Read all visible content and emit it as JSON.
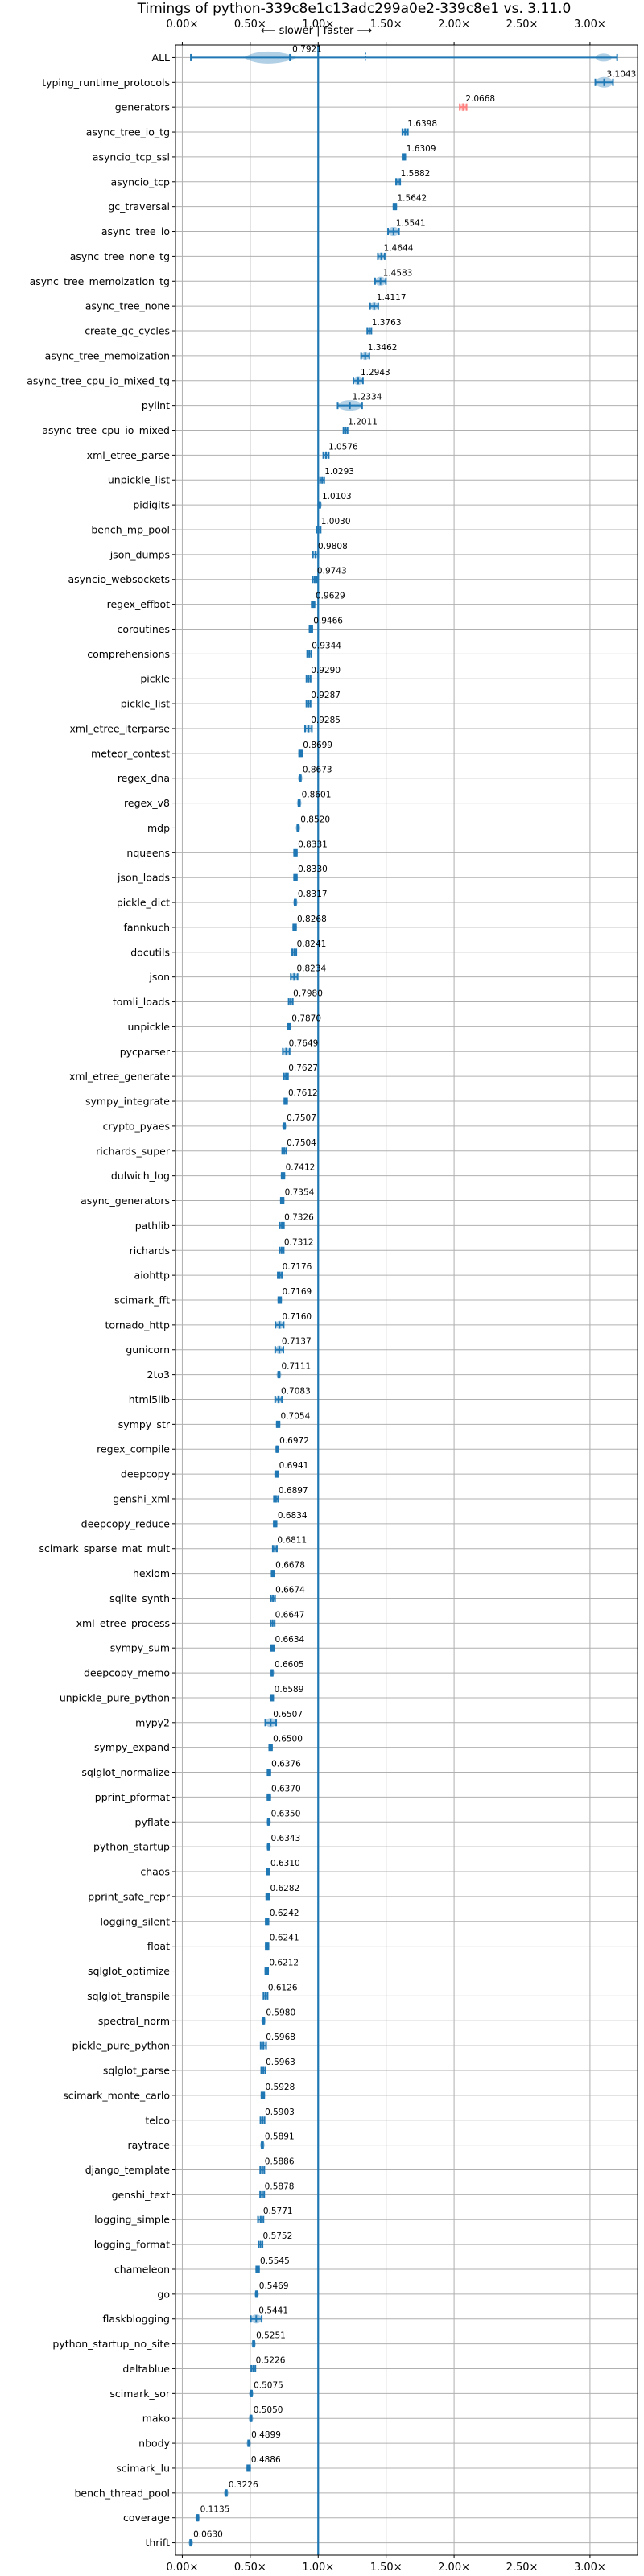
{
  "chart_data": {
    "type": "violin",
    "title": "Timings of python-339c8e1c13adc299a0e2-339c8e1 vs. 3.11.0",
    "subtitle": "⟵ slower | faster ⟶",
    "xlabel": "",
    "ylabel": "",
    "xlim": [
      -0.05,
      3.35
    ],
    "x_ticks": [
      "0.00×",
      "0.50×",
      "1.00×",
      "1.50×",
      "2.00×",
      "2.50×",
      "3.00×"
    ],
    "x_tick_values": [
      0,
      0.5,
      1,
      1.5,
      2,
      2.5,
      3
    ],
    "reference_line": 1.0,
    "grid": true,
    "colors": {
      "violin": "#1f77b4",
      "highlight": "#ff7f7f",
      "grid": "#b0b0b0"
    },
    "benchmarks": [
      {
        "name": "ALL",
        "value": 0.7921,
        "spread": 0.55
      },
      {
        "name": "typing_runtime_protocols",
        "value": 3.1043,
        "spread": 0.13
      },
      {
        "name": "generators",
        "value": 2.0668,
        "spread": 0.05,
        "highlight": true
      },
      {
        "name": "async_tree_io_tg",
        "value": 1.6398,
        "spread": 0.04
      },
      {
        "name": "asyncio_tcp_ssl",
        "value": 1.6309,
        "spread": 0.02
      },
      {
        "name": "asyncio_tcp",
        "value": 1.5882,
        "spread": 0.03
      },
      {
        "name": "gc_traversal",
        "value": 1.5642,
        "spread": 0.02
      },
      {
        "name": "async_tree_io",
        "value": 1.5541,
        "spread": 0.08
      },
      {
        "name": "async_tree_none_tg",
        "value": 1.4644,
        "spread": 0.05
      },
      {
        "name": "async_tree_memoization_tg",
        "value": 1.4583,
        "spread": 0.08
      },
      {
        "name": "async_tree_none",
        "value": 1.4117,
        "spread": 0.06
      },
      {
        "name": "create_gc_cycles",
        "value": 1.3763,
        "spread": 0.03
      },
      {
        "name": "async_tree_memoization",
        "value": 1.3462,
        "spread": 0.06
      },
      {
        "name": "async_tree_cpu_io_mixed_tg",
        "value": 1.2943,
        "spread": 0.07
      },
      {
        "name": "pylint",
        "value": 1.2334,
        "spread": 0.18
      },
      {
        "name": "async_tree_cpu_io_mixed",
        "value": 1.2011,
        "spread": 0.03
      },
      {
        "name": "xml_etree_parse",
        "value": 1.0576,
        "spread": 0.04
      },
      {
        "name": "unpickle_list",
        "value": 1.0293,
        "spread": 0.03
      },
      {
        "name": "pidigits",
        "value": 1.0103,
        "spread": 0.01
      },
      {
        "name": "bench_mp_pool",
        "value": 1.003,
        "spread": 0.03
      },
      {
        "name": "json_dumps",
        "value": 0.9808,
        "spread": 0.04
      },
      {
        "name": "asyncio_websockets",
        "value": 0.9743,
        "spread": 0.03
      },
      {
        "name": "regex_effbot",
        "value": 0.9629,
        "spread": 0.02
      },
      {
        "name": "coroutines",
        "value": 0.9466,
        "spread": 0.02
      },
      {
        "name": "comprehensions",
        "value": 0.9344,
        "spread": 0.03
      },
      {
        "name": "pickle",
        "value": 0.929,
        "spread": 0.03
      },
      {
        "name": "pickle_list",
        "value": 0.9287,
        "spread": 0.03
      },
      {
        "name": "xml_etree_iterparse",
        "value": 0.9285,
        "spread": 0.05
      },
      {
        "name": "meteor_contest",
        "value": 0.8699,
        "spread": 0.02
      },
      {
        "name": "regex_dna",
        "value": 0.8673,
        "spread": 0.01
      },
      {
        "name": "regex_v8",
        "value": 0.8601,
        "spread": 0.01
      },
      {
        "name": "mdp",
        "value": 0.852,
        "spread": 0.01
      },
      {
        "name": "nqueens",
        "value": 0.8331,
        "spread": 0.02
      },
      {
        "name": "json_loads",
        "value": 0.833,
        "spread": 0.02
      },
      {
        "name": "pickle_dict",
        "value": 0.8317,
        "spread": 0.01
      },
      {
        "name": "fannkuch",
        "value": 0.8268,
        "spread": 0.02
      },
      {
        "name": "docutils",
        "value": 0.8241,
        "spread": 0.03
      },
      {
        "name": "json",
        "value": 0.8234,
        "spread": 0.05
      },
      {
        "name": "tomli_loads",
        "value": 0.798,
        "spread": 0.03
      },
      {
        "name": "unpickle",
        "value": 0.787,
        "spread": 0.02
      },
      {
        "name": "pycparser",
        "value": 0.7649,
        "spread": 0.05
      },
      {
        "name": "xml_etree_generate",
        "value": 0.7627,
        "spread": 0.03
      },
      {
        "name": "sympy_integrate",
        "value": 0.7612,
        "spread": 0.02
      },
      {
        "name": "crypto_pyaes",
        "value": 0.7507,
        "spread": 0.01
      },
      {
        "name": "richards_super",
        "value": 0.7504,
        "spread": 0.03
      },
      {
        "name": "dulwich_log",
        "value": 0.7412,
        "spread": 0.02
      },
      {
        "name": "async_generators",
        "value": 0.7354,
        "spread": 0.02
      },
      {
        "name": "pathlib",
        "value": 0.7326,
        "spread": 0.03
      },
      {
        "name": "richards",
        "value": 0.7312,
        "spread": 0.03
      },
      {
        "name": "aiohttp",
        "value": 0.7176,
        "spread": 0.03
      },
      {
        "name": "scimark_fft",
        "value": 0.7169,
        "spread": 0.02
      },
      {
        "name": "tornado_http",
        "value": 0.716,
        "spread": 0.06
      },
      {
        "name": "gunicorn",
        "value": 0.7137,
        "spread": 0.06
      },
      {
        "name": "2to3",
        "value": 0.7111,
        "spread": 0.01
      },
      {
        "name": "html5lib",
        "value": 0.7083,
        "spread": 0.05
      },
      {
        "name": "sympy_str",
        "value": 0.7054,
        "spread": 0.02
      },
      {
        "name": "regex_compile",
        "value": 0.6972,
        "spread": 0.01
      },
      {
        "name": "deepcopy",
        "value": 0.6941,
        "spread": 0.02
      },
      {
        "name": "genshi_xml",
        "value": 0.6897,
        "spread": 0.03
      },
      {
        "name": "deepcopy_reduce",
        "value": 0.6834,
        "spread": 0.02
      },
      {
        "name": "scimark_sparse_mat_mult",
        "value": 0.6811,
        "spread": 0.03
      },
      {
        "name": "hexiom",
        "value": 0.6678,
        "spread": 0.02
      },
      {
        "name": "sqlite_synth",
        "value": 0.6674,
        "spread": 0.03
      },
      {
        "name": "xml_etree_process",
        "value": 0.6647,
        "spread": 0.03
      },
      {
        "name": "sympy_sum",
        "value": 0.6634,
        "spread": 0.02
      },
      {
        "name": "deepcopy_memo",
        "value": 0.6605,
        "spread": 0.01
      },
      {
        "name": "unpickle_pure_python",
        "value": 0.6589,
        "spread": 0.02
      },
      {
        "name": "mypy2",
        "value": 0.6507,
        "spread": 0.08
      },
      {
        "name": "sympy_expand",
        "value": 0.65,
        "spread": 0.02
      },
      {
        "name": "sqlglot_normalize",
        "value": 0.6376,
        "spread": 0.02
      },
      {
        "name": "pprint_pformat",
        "value": 0.637,
        "spread": 0.02
      },
      {
        "name": "pyflate",
        "value": 0.635,
        "spread": 0.01
      },
      {
        "name": "python_startup",
        "value": 0.6343,
        "spread": 0.01
      },
      {
        "name": "chaos",
        "value": 0.631,
        "spread": 0.02
      },
      {
        "name": "pprint_safe_repr",
        "value": 0.6282,
        "spread": 0.02
      },
      {
        "name": "logging_silent",
        "value": 0.6242,
        "spread": 0.02
      },
      {
        "name": "float",
        "value": 0.6241,
        "spread": 0.02
      },
      {
        "name": "sqlglot_optimize",
        "value": 0.6212,
        "spread": 0.02
      },
      {
        "name": "sqlglot_transpile",
        "value": 0.6126,
        "spread": 0.03
      },
      {
        "name": "spectral_norm",
        "value": 0.598,
        "spread": 0.01
      },
      {
        "name": "pickle_pure_python",
        "value": 0.5968,
        "spread": 0.04
      },
      {
        "name": "sqlglot_parse",
        "value": 0.5963,
        "spread": 0.03
      },
      {
        "name": "scimark_monte_carlo",
        "value": 0.5928,
        "spread": 0.02
      },
      {
        "name": "telco",
        "value": 0.5903,
        "spread": 0.03
      },
      {
        "name": "raytrace",
        "value": 0.5891,
        "spread": 0.01
      },
      {
        "name": "django_template",
        "value": 0.5886,
        "spread": 0.03
      },
      {
        "name": "genshi_text",
        "value": 0.5878,
        "spread": 0.03
      },
      {
        "name": "logging_simple",
        "value": 0.5771,
        "spread": 0.04
      },
      {
        "name": "logging_format",
        "value": 0.5752,
        "spread": 0.03
      },
      {
        "name": "chameleon",
        "value": 0.5545,
        "spread": 0.02
      },
      {
        "name": "go",
        "value": 0.5469,
        "spread": 0.01
      },
      {
        "name": "flaskblogging",
        "value": 0.5441,
        "spread": 0.08
      },
      {
        "name": "python_startup_no_site",
        "value": 0.5251,
        "spread": 0.01
      },
      {
        "name": "deltablue",
        "value": 0.5226,
        "spread": 0.03
      },
      {
        "name": "scimark_sor",
        "value": 0.5075,
        "spread": 0.01
      },
      {
        "name": "mako",
        "value": 0.505,
        "spread": 0.01
      },
      {
        "name": "nbody",
        "value": 0.4899,
        "spread": 0.01
      },
      {
        "name": "scimark_lu",
        "value": 0.4886,
        "spread": 0.02
      },
      {
        "name": "bench_thread_pool",
        "value": 0.3226,
        "spread": 0.01
      },
      {
        "name": "coverage",
        "value": 0.1135,
        "spread": 0.01
      },
      {
        "name": "thrift",
        "value": 0.063,
        "spread": 0.01
      }
    ]
  }
}
